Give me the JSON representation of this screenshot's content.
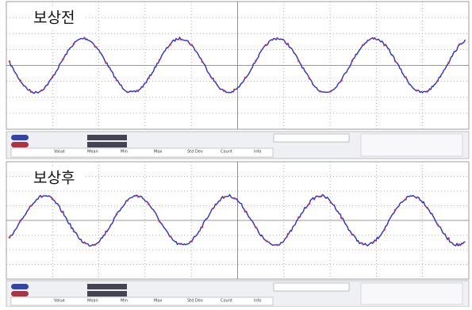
{
  "panels": [
    {
      "title": "보상전",
      "stats_header": [
        "Value",
        "Mean",
        "Min",
        "Max",
        "Std Dev",
        "Count",
        "Info"
      ]
    },
    {
      "title": "보상후",
      "stats_header": [
        "Value",
        "Mean",
        "Min",
        "Max",
        "Std Dev",
        "Count",
        "Info"
      ]
    }
  ]
}
